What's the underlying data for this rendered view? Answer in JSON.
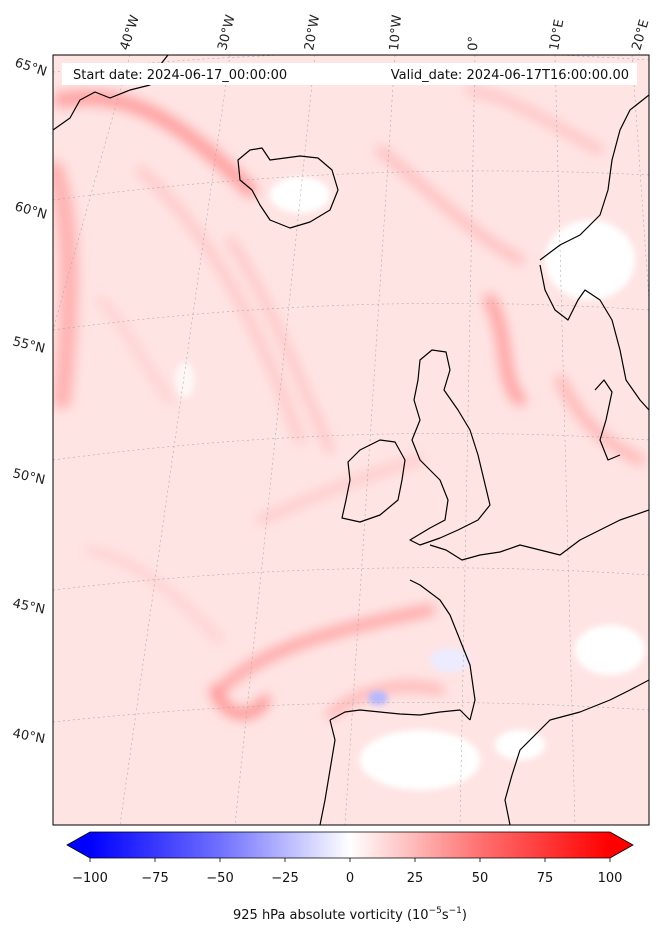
{
  "header": {
    "start_date": "Start date: 2024-06-17_00:00:00",
    "valid_date": "Valid_date: 2024-06-17T16:00:00.00"
  },
  "longitude_labels": [
    "40°W",
    "30°W",
    "20°W",
    "10°W",
    "0°",
    "10°E",
    "20°E"
  ],
  "latitude_labels": [
    "65°N",
    "60°N",
    "55°N",
    "50°N",
    "45°N",
    "40°N"
  ],
  "colorbar": {
    "ticks": [
      "−100",
      "−75",
      "−50",
      "−25",
      "0",
      "25",
      "50",
      "75",
      "100"
    ],
    "title_main": "925 hPa absolute vorticity (10",
    "title_exp1": "−5",
    "title_mid": "s",
    "title_exp2": "−1",
    "title_end": ")",
    "min": -100,
    "max": 100
  },
  "colors": {
    "negative": "#0000ff",
    "zero": "#ffffff",
    "positive": "#ff0000",
    "coastline": "#000000",
    "field_base": "#ffe4e4"
  }
}
